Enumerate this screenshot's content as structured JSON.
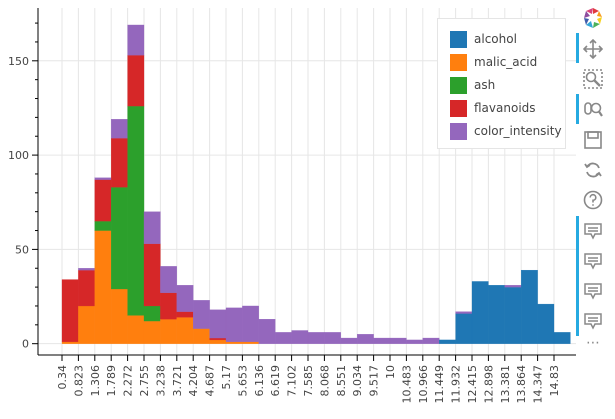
{
  "chart_data": {
    "type": "bar",
    "stacked": true,
    "xlabel": "",
    "ylabel": "",
    "x_ticks": [
      "0.34",
      "0.823",
      "1.306",
      "1.789",
      "2.272",
      "2.755",
      "3.238",
      "3.721",
      "4.204",
      "4.687",
      "5.17",
      "5.653",
      "6.136",
      "6.619",
      "7.102",
      "7.585",
      "8.068",
      "8.551",
      "9.034",
      "9.517",
      "10",
      "10.483",
      "10.966",
      "11.449",
      "11.932",
      "12.415",
      "12.898",
      "13.381",
      "13.864",
      "14.347",
      "14.83"
    ],
    "y_ticks": [
      0,
      50,
      100,
      150
    ],
    "ylim": [
      -6,
      178
    ],
    "grid": true,
    "legend_position": "top-right",
    "series": [
      {
        "name": "alcohol",
        "color": "#1f77b4",
        "values": [
          0,
          0,
          0,
          0,
          0,
          0,
          0,
          0,
          0,
          0,
          0,
          0,
          0,
          0,
          0,
          0,
          0,
          0,
          0,
          0,
          0,
          0,
          0,
          2,
          16,
          33,
          31,
          30,
          39,
          21,
          6
        ]
      },
      {
        "name": "malic_acid",
        "color": "#ff7f0e",
        "values": [
          1,
          20,
          60,
          29,
          15,
          12,
          13,
          14,
          8,
          2,
          1,
          1,
          0,
          0,
          0,
          0,
          0,
          0,
          0,
          0,
          0,
          0,
          0,
          0,
          0,
          0,
          0,
          0,
          0,
          0,
          0
        ]
      },
      {
        "name": "ash",
        "color": "#2ca02c",
        "values": [
          0,
          0,
          5,
          54,
          111,
          8,
          0,
          0,
          0,
          0,
          0,
          0,
          0,
          0,
          0,
          0,
          0,
          0,
          0,
          0,
          0,
          0,
          0,
          0,
          0,
          0,
          0,
          0,
          0,
          0,
          0
        ]
      },
      {
        "name": "flavanoids",
        "color": "#d62728",
        "values": [
          33,
          19,
          22,
          26,
          27,
          33,
          14,
          3,
          0,
          1,
          0,
          0,
          0,
          0,
          0,
          0,
          0,
          0,
          0,
          0,
          0,
          0,
          0,
          0,
          0,
          0,
          0,
          0,
          0,
          0,
          0
        ]
      },
      {
        "name": "color_intensity",
        "color": "#9467bd",
        "values": [
          0,
          1,
          1,
          10,
          16,
          17,
          14,
          14,
          15,
          15,
          18,
          19,
          13,
          6,
          7,
          6,
          6,
          3,
          5,
          3,
          3,
          2,
          3,
          0,
          1,
          0,
          0,
          1,
          0,
          0,
          0
        ]
      }
    ]
  },
  "toolbar": {
    "tools": [
      "bokeh-logo-icon",
      "pan-icon",
      "box-zoom-icon",
      "wheel-zoom-icon",
      "save-icon",
      "reset-icon",
      "help-icon",
      "hover-icon",
      "hover-icon",
      "hover-icon",
      "hover-icon"
    ],
    "more_label": "⋯"
  }
}
